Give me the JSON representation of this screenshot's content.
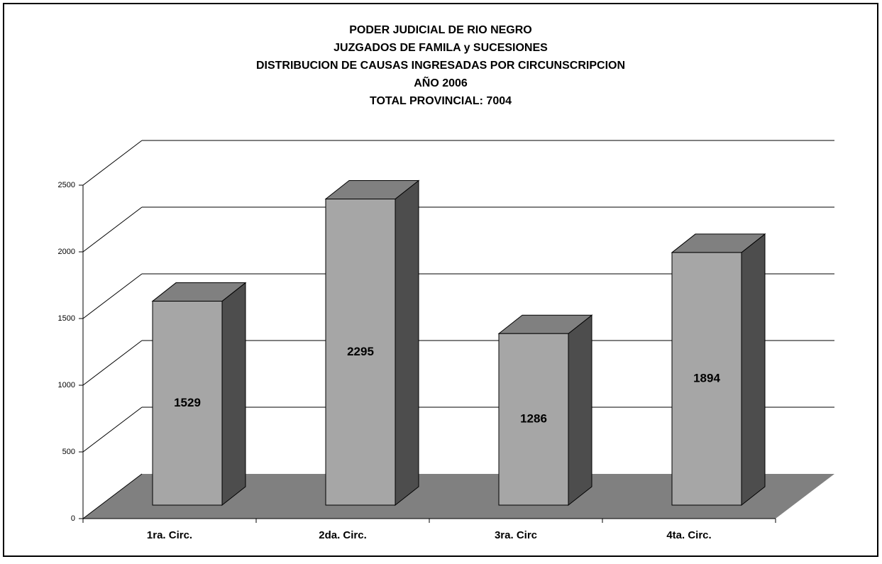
{
  "chart_data": {
    "type": "bar3d",
    "title": [
      "PODER JUDICIAL DE RIO NEGRO",
      "JUZGADOS DE FAMILA y SUCESIONES",
      "DISTRIBUCION DE CAUSAS INGRESADAS POR CIRCUNSCRIPCION",
      "AÑO 2006",
      "TOTAL PROVINCIAL: 7004"
    ],
    "categories": [
      "1ra. Circ.",
      "2da. Circ.",
      "3ra. Circ",
      "4ta. Circ."
    ],
    "values": [
      1529,
      2295,
      1286,
      1894
    ],
    "color": "#a6a6a6",
    "ylim": [
      0,
      2500
    ],
    "yticks": [
      0,
      500,
      1000,
      1500,
      2000,
      2500
    ],
    "grid": true
  }
}
